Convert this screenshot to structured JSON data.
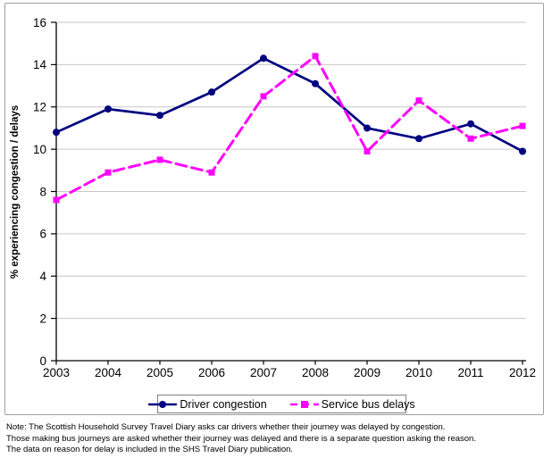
{
  "chart_data": {
    "type": "line",
    "title": "",
    "xlabel": "",
    "ylabel": "% experiencing congestion / delays",
    "x": [
      2003,
      2004,
      2005,
      2006,
      2007,
      2008,
      2009,
      2010,
      2011,
      2012
    ],
    "series": [
      {
        "name": "Driver congestion",
        "color": "#000080",
        "marker": "circle",
        "line_style": "solid",
        "values": [
          10.8,
          11.9,
          11.6,
          12.7,
          14.3,
          13.1,
          11.0,
          10.5,
          11.2,
          9.9
        ]
      },
      {
        "name": "Service bus delays",
        "color": "#ff00ff",
        "marker": "square",
        "line_style": "dashed",
        "values": [
          7.6,
          8.9,
          9.5,
          8.9,
          12.5,
          14.4,
          9.9,
          12.3,
          10.5,
          11.1
        ]
      }
    ],
    "ylim": [
      0,
      16
    ],
    "yticks": [
      0,
      2,
      4,
      6,
      8,
      10,
      12,
      14,
      16
    ],
    "grid": true,
    "legend_position": "bottom"
  },
  "colors": {
    "axis": "#000000",
    "gridline": "#c6c6c6",
    "frame_border": "#a0a0a0",
    "legend_border": "#808080",
    "background": "#ffffff"
  },
  "notes": {
    "lines": [
      "Note: The Scottish Household Survey Travel Diary asks car drivers whether their journey was delayed by congestion.",
      "Those making bus journeys are asked whether their journey was delayed and there is a separate question asking the reason.",
      "The data on reason for delay is included in the SHS Travel Diary publication."
    ]
  }
}
